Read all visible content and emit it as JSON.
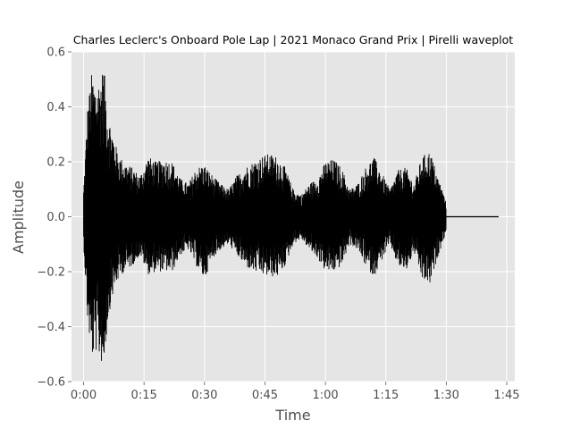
{
  "chart_data": {
    "type": "line",
    "title": "Charles Leclerc's Onboard Pole Lap | 2021 Monaco Grand Prix | Pirelli waveplot",
    "xlabel": "Time",
    "ylabel": "Amplitude",
    "xlim": [
      "-0:03",
      "1:47"
    ],
    "ylim": [
      -0.6,
      0.6
    ],
    "x_ticks": [
      "0:00",
      "0:15",
      "0:30",
      "0:45",
      "1:00",
      "1:15",
      "1:30",
      "1:45"
    ],
    "y_ticks": [
      "−0.6",
      "−0.4",
      "−0.2",
      "0.0",
      "0.2",
      "0.4",
      "0.6"
    ],
    "grid": true,
    "series": [
      {
        "color": "#000000",
        "envelope_time": [
          "0:00",
          "0:01",
          "0:02",
          "0:03",
          "0:04",
          "0:05",
          "0:06",
          "0:07",
          "0:08",
          "0:09",
          "0:10",
          "0:12",
          "0:14",
          "0:16",
          "0:18",
          "0:20",
          "0:22",
          "0:24",
          "0:26",
          "0:28",
          "0:30",
          "0:32",
          "0:34",
          "0:36",
          "0:38",
          "0:40",
          "0:42",
          "0:44",
          "0:46",
          "0:48",
          "0:50",
          "0:52",
          "0:54",
          "0:56",
          "0:58",
          "1:00",
          "1:02",
          "1:04",
          "1:06",
          "1:08",
          "1:10",
          "1:12",
          "1:14",
          "1:16",
          "1:18",
          "1:20",
          "1:22",
          "1:24",
          "1:26",
          "1:28",
          "1:29",
          "1:30",
          "1:31",
          "1:35",
          "1:40",
          "1:43"
        ],
        "envelope_max": [
          0.1,
          0.4,
          0.52,
          0.48,
          0.5,
          0.55,
          0.38,
          0.32,
          0.26,
          0.22,
          0.2,
          0.18,
          0.15,
          0.22,
          0.2,
          0.21,
          0.2,
          0.14,
          0.12,
          0.18,
          0.19,
          0.15,
          0.12,
          0.1,
          0.15,
          0.18,
          0.2,
          0.22,
          0.23,
          0.22,
          0.18,
          0.1,
          0.08,
          0.12,
          0.14,
          0.2,
          0.21,
          0.18,
          0.1,
          0.12,
          0.18,
          0.22,
          0.16,
          0.1,
          0.17,
          0.18,
          0.12,
          0.22,
          0.24,
          0.14,
          0.1,
          0.05,
          0.0,
          0.0,
          0.0,
          0.0
        ],
        "envelope_min": [
          -0.1,
          -0.38,
          -0.52,
          -0.49,
          -0.52,
          -0.55,
          -0.38,
          -0.3,
          -0.25,
          -0.22,
          -0.2,
          -0.18,
          -0.14,
          -0.21,
          -0.2,
          -0.2,
          -0.2,
          -0.14,
          -0.12,
          -0.18,
          -0.23,
          -0.15,
          -0.12,
          -0.1,
          -0.14,
          -0.18,
          -0.2,
          -0.21,
          -0.22,
          -0.22,
          -0.18,
          -0.1,
          -0.08,
          -0.12,
          -0.15,
          -0.2,
          -0.2,
          -0.18,
          -0.1,
          -0.12,
          -0.18,
          -0.22,
          -0.16,
          -0.1,
          -0.18,
          -0.2,
          -0.13,
          -0.23,
          -0.25,
          -0.14,
          -0.1,
          -0.05,
          0.0,
          0.0,
          0.0,
          0.0
        ]
      }
    ]
  }
}
